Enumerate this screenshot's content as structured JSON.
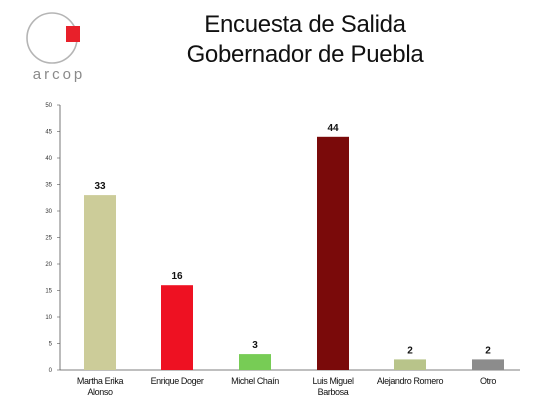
{
  "logo": {
    "text": "arcop",
    "circle_color": "#b5b5b5",
    "square_color": "#e8202a"
  },
  "title_lines": [
    "Encuesta de Salida",
    "Gobernador de Puebla"
  ],
  "chart_data": {
    "type": "bar",
    "title": "Encuesta de Salida Gobernador de Puebla",
    "xlabel": "",
    "ylabel": "",
    "ylim": [
      0,
      50
    ],
    "yticks": [
      0,
      5,
      10,
      15,
      20,
      25,
      30,
      35,
      40,
      45,
      50
    ],
    "grid": false,
    "categories": [
      [
        "Martha Erika",
        "Alonso"
      ],
      [
        "Enrique Doger"
      ],
      [
        "Michel Chaín"
      ],
      [
        "Luis Miguel",
        "Barbosa"
      ],
      [
        "Alejandro Romero"
      ],
      [
        "Otro"
      ]
    ],
    "values": [
      33,
      16,
      3,
      44,
      2,
      2
    ],
    "colors": [
      "#cccc99",
      "#ee1122",
      "#77cc55",
      "#7a0a0a",
      "#b8c48a",
      "#8c8c8c"
    ]
  }
}
